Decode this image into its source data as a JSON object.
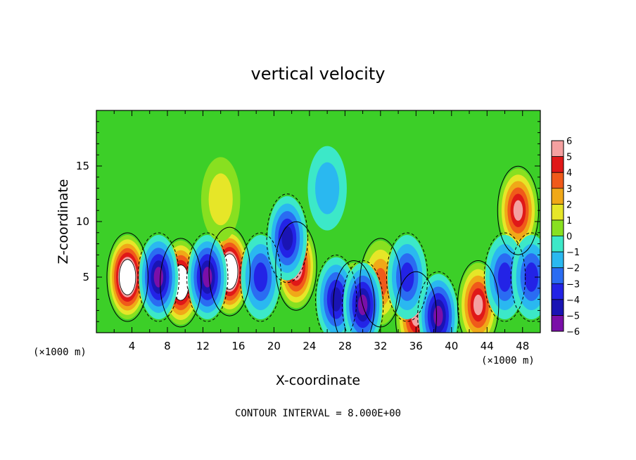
{
  "chart_data": {
    "type": "heatmap",
    "title": "vertical velocity",
    "xlabel": "X-coordinate",
    "ylabel": "Z-coordinate",
    "x_unit": "(×1000 m)",
    "x_ticks": [
      "4",
      "8",
      "12",
      "16",
      "20",
      "24",
      "28",
      "32",
      "36",
      "40",
      "44",
      "48"
    ],
    "y_ticks": [
      "5",
      "10",
      "15"
    ],
    "xlim": [
      0,
      50
    ],
    "ylim": [
      0,
      20
    ],
    "colorbar": {
      "ticks": [
        "6",
        "5",
        "4",
        "3",
        "2",
        "1",
        "0",
        "−1",
        "−2",
        "−3",
        "−4",
        "−5",
        "−6"
      ],
      "range": [
        -6,
        6
      ]
    },
    "footer": "CONTOUR INTERVAL = 8.000E+00",
    "features": [
      {
        "x": 3.5,
        "z": 5.0,
        "w": 9
      },
      {
        "x": 9.5,
        "z": 4.5,
        "w": 8
      },
      {
        "x": 15.0,
        "z": 5.5,
        "w": 9
      },
      {
        "x": 22.5,
        "z": 6.0,
        "w": 7
      },
      {
        "x": 29.0,
        "z": 2.5,
        "w": 5
      },
      {
        "x": 32.0,
        "z": 4.5,
        "w": 4
      },
      {
        "x": 36.0,
        "z": 1.5,
        "w": 6
      },
      {
        "x": 43.0,
        "z": 2.5,
        "w": 6
      },
      {
        "x": 47.5,
        "z": 11.0,
        "w": 6
      },
      {
        "x": 7.0,
        "z": 5.0,
        "w": -6
      },
      {
        "x": 12.5,
        "z": 5.0,
        "w": -6
      },
      {
        "x": 18.5,
        "z": 5.0,
        "w": -4
      },
      {
        "x": 21.5,
        "z": 8.5,
        "w": -5
      },
      {
        "x": 27.0,
        "z": 3.0,
        "w": -5
      },
      {
        "x": 30.0,
        "z": 2.5,
        "w": -6
      },
      {
        "x": 35.0,
        "z": 5.0,
        "w": -4
      },
      {
        "x": 38.5,
        "z": 1.5,
        "w": -6
      },
      {
        "x": 46.0,
        "z": 5.0,
        "w": -4
      },
      {
        "x": 49.0,
        "z": 5.0,
        "w": -4
      },
      {
        "x": 14.0,
        "z": 12.0,
        "w": 2
      },
      {
        "x": 26.0,
        "z": 13.0,
        "w": -2
      }
    ]
  }
}
